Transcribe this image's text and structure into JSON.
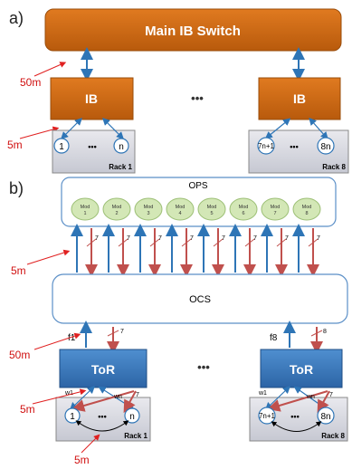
{
  "panel_a": {
    "label": "a)",
    "switch_label": "Main IB Switch",
    "ib_left": "IB",
    "ib_right": "IB",
    "ellipsis": "•••",
    "dist_top": "50m",
    "dist_bottom": "5m",
    "rack_left": {
      "node_first": "1",
      "dots": "•••",
      "node_last": "n",
      "name": "Rack 1"
    },
    "rack_right": {
      "node_first": "7n+1",
      "dots": "•••",
      "node_last": "8n",
      "name": "Rack 8"
    }
  },
  "panel_b": {
    "label": "b)",
    "ops_label": "OPS",
    "modules": [
      {
        "top": "Mod",
        "bottom": "1"
      },
      {
        "top": "Mod",
        "bottom": "2"
      },
      {
        "top": "Mod",
        "bottom": "3"
      },
      {
        "top": "Mod",
        "bottom": "4"
      },
      {
        "top": "Mod",
        "bottom": "5"
      },
      {
        "top": "Mod",
        "bottom": "6"
      },
      {
        "top": "Mod",
        "bottom": "7"
      },
      {
        "top": "Mod",
        "bottom": "8"
      }
    ],
    "link_count_mark": "7",
    "ocs_label": "OCS",
    "dist_5m_ops": "5m",
    "dist_50m": "50m",
    "dist_5m_rack": "5m",
    "dist_5m_loop": "5m",
    "fiber_left": "f1",
    "fiber_right": "f8",
    "count_left": "7",
    "count_right": "8",
    "tor_left": "ToR",
    "tor_right": "ToR",
    "ellipsis": "•••",
    "rack_left": {
      "w1": "w1",
      "wn": "wn",
      "count": "7",
      "node_first": "1",
      "dots": "•••",
      "node_last": "n",
      "name": "Rack 1"
    },
    "rack_right": {
      "w1": "w1",
      "wn": "wn",
      "count": "7",
      "node_first": "7n+1",
      "dots": "•••",
      "node_last": "8n",
      "name": "Rack 8"
    }
  }
}
